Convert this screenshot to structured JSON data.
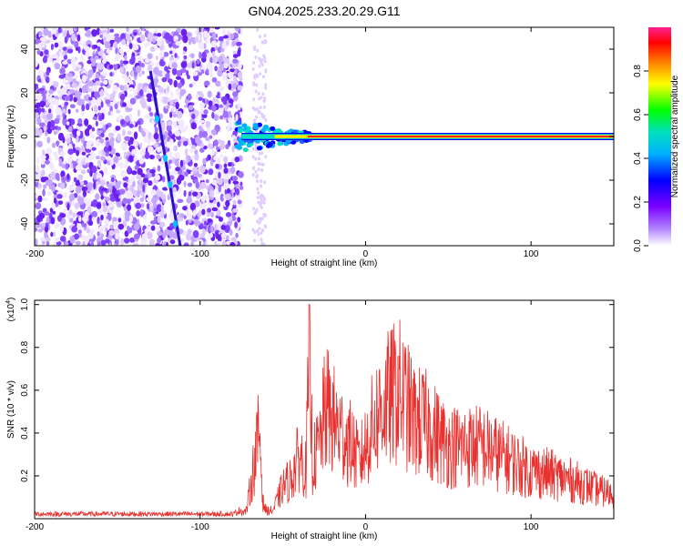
{
  "title": "GN04.2025.233.20.29.G11",
  "chart_data": [
    {
      "type": "heatmap",
      "xlabel": "Height of straight line (km)",
      "ylabel": "Frequency (Hz)",
      "xlim": [
        -200,
        150
      ],
      "ylim": [
        -50,
        50
      ],
      "x_ticks": [
        -200,
        -100,
        0,
        100
      ],
      "y_ticks": [
        -40,
        -20,
        0,
        20,
        40
      ],
      "colorbar": {
        "label": "Normalized spectral amplitude",
        "range": [
          0,
          1
        ],
        "ticks": [
          "0.0",
          "0.2",
          "0.4",
          "0.6",
          "0.8"
        ],
        "colors": [
          "#ffffff",
          "#b080ff",
          "#7a00ff",
          "#0000ff",
          "#00b0ff",
          "#00e0c0",
          "#00ff00",
          "#ffff00",
          "#ff8000",
          "#ff0000",
          "#ff2090"
        ]
      },
      "features": {
        "noise_region_x": [
          -200,
          -75
        ],
        "diagonal_line": [
          {
            "x": -130,
            "y": 30
          },
          {
            "x": -112,
            "y": -50
          }
        ],
        "carrier_line_y": 0,
        "carrier_start_x": -75
      }
    },
    {
      "type": "line",
      "xlabel": "Height of straight line (km)",
      "ylabel": "SNR (10 * v/v)",
      "y_multiplier": "(x10",
      "y_multiplier_exp": "4",
      "xlim": [
        -200,
        150
      ],
      "ylim": [
        0,
        1.02
      ],
      "x_ticks": [
        -200,
        -100,
        0,
        100
      ],
      "y_ticks": [
        "0.2",
        "0.4",
        "0.6",
        "0.8",
        "1.0"
      ],
      "color": "#e8312f",
      "series": [
        {
          "x": [
            -200,
            -150,
            -100,
            -80,
            -72,
            -68,
            -64,
            -62,
            -60,
            -56,
            -50,
            -45,
            -40,
            -36,
            -34,
            -32,
            -28,
            -24,
            -20,
            -16,
            -12,
            -8,
            -4,
            0,
            5,
            10,
            15,
            20,
            25,
            30,
            35,
            40,
            50,
            60,
            70,
            80,
            90,
            100,
            110,
            120,
            130,
            140,
            150
          ],
          "values": [
            0.02,
            0.02,
            0.02,
            0.02,
            0.05,
            0.3,
            0.55,
            0.1,
            0.05,
            0.05,
            0.2,
            0.25,
            0.4,
            0.3,
            1.0,
            0.35,
            0.45,
            0.7,
            0.62,
            0.55,
            0.5,
            0.45,
            0.35,
            0.45,
            0.6,
            0.7,
            0.75,
            0.8,
            0.7,
            0.6,
            0.6,
            0.55,
            0.45,
            0.45,
            0.45,
            0.4,
            0.35,
            0.3,
            0.28,
            0.25,
            0.22,
            0.18,
            0.15
          ]
        }
      ]
    }
  ]
}
